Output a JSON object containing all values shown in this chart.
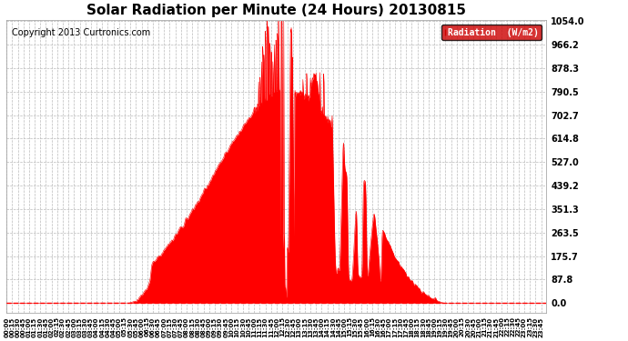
{
  "title": "Solar Radiation per Minute (24 Hours) 20130815",
  "copyright": "Copyright 2013 Curtronics.com",
  "legend_text": "Radiation  (W/m2)",
  "yticks": [
    0.0,
    87.8,
    175.7,
    263.5,
    351.3,
    439.2,
    527.0,
    614.8,
    702.7,
    790.5,
    878.3,
    966.2,
    1054.0
  ],
  "ymax": 1054.0,
  "fill_color": "#ff0000",
  "line_color": "#ff0000",
  "dashed_color": "#ff0000",
  "bg_color": "#ffffff",
  "grid_color": "#bbbbbb",
  "legend_bg": "#cc0000",
  "title_fontsize": 11,
  "copyright_fontsize": 7,
  "total_minutes": 1440,
  "sunrise_minute": 325,
  "sunset_minute": 1165
}
